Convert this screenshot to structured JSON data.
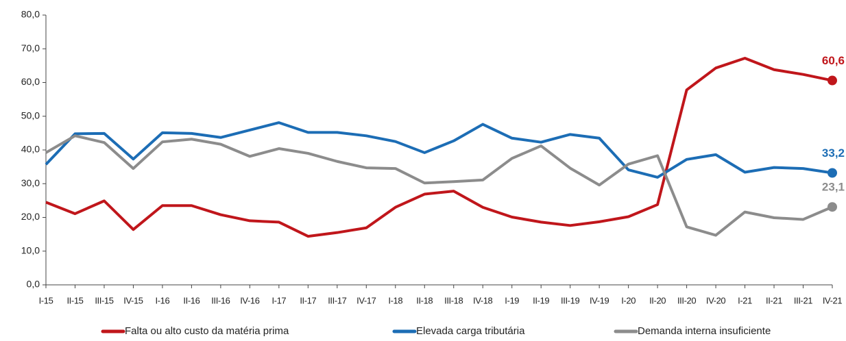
{
  "chart_data": {
    "type": "line",
    "categories": [
      "I-15",
      "II-15",
      "III-15",
      "IV-15",
      "I-16",
      "II-16",
      "III-16",
      "IV-16",
      "I-17",
      "II-17",
      "III-17",
      "IV-17",
      "I-18",
      "II-18",
      "III-18",
      "IV-18",
      "I-19",
      "II-19",
      "III-19",
      "IV-19",
      "I-20",
      "II-20",
      "III-20",
      "IV-20",
      "I-21",
      "II-21",
      "III-21",
      "IV-21"
    ],
    "series": [
      {
        "name": "Falta ou alto custo da matéria prima",
        "color": "#c0161b",
        "values": [
          24.5,
          21.1,
          24.9,
          16.4,
          23.5,
          23.5,
          20.8,
          19.0,
          18.6,
          14.4,
          15.5,
          16.9,
          23.0,
          26.9,
          27.8,
          23.0,
          20.1,
          18.6,
          17.6,
          18.7,
          20.2,
          23.8,
          57.8,
          64.3,
          67.2,
          63.8,
          62.4,
          60.6
        ],
        "value_labels": [
          null,
          null,
          null,
          null,
          null,
          null,
          null,
          null,
          null,
          null,
          null,
          null,
          null,
          null,
          null,
          null,
          null,
          null,
          null,
          null,
          null,
          null,
          null,
          null,
          null,
          null,
          null,
          "60,6"
        ]
      },
      {
        "name": "Elevada carga tributária",
        "color": "#1c6db5",
        "values": [
          35.7,
          44.8,
          44.9,
          37.3,
          45.1,
          44.9,
          43.7,
          45.9,
          48.1,
          45.2,
          45.2,
          44.2,
          42.5,
          39.2,
          42.7,
          47.6,
          43.5,
          42.3,
          44.6,
          43.5,
          34.1,
          31.9,
          37.2,
          38.6,
          33.4,
          34.8,
          34.5,
          33.2
        ],
        "value_labels": [
          null,
          null,
          null,
          null,
          null,
          null,
          null,
          null,
          null,
          null,
          null,
          null,
          null,
          null,
          null,
          null,
          null,
          null,
          null,
          null,
          null,
          null,
          null,
          null,
          null,
          null,
          null,
          "33,2"
        ]
      },
      {
        "name": "Demanda interna insuficiente",
        "color": "#8c8c8c",
        "values": [
          39.2,
          44.2,
          42.2,
          34.5,
          42.4,
          43.2,
          41.7,
          38.1,
          40.4,
          39.0,
          36.6,
          34.7,
          34.5,
          30.2,
          30.6,
          31.1,
          37.5,
          41.2,
          34.6,
          29.6,
          35.8,
          38.3,
          17.2,
          14.7,
          21.6,
          19.9,
          19.4,
          23.1
        ],
        "value_labels": [
          null,
          null,
          null,
          null,
          null,
          null,
          null,
          null,
          null,
          null,
          null,
          null,
          null,
          null,
          null,
          null,
          null,
          null,
          null,
          null,
          null,
          null,
          null,
          null,
          null,
          null,
          null,
          "23,1"
        ]
      }
    ],
    "ylim": [
      0,
      80
    ],
    "yticks": [
      {
        "value": 0,
        "label": "0,0"
      },
      {
        "value": 10,
        "label": "10,0"
      },
      {
        "value": 20,
        "label": "20,0"
      },
      {
        "value": 30,
        "label": "30,0"
      },
      {
        "value": 40,
        "label": "40,0"
      },
      {
        "value": 50,
        "label": "50,0"
      },
      {
        "value": 60,
        "label": "60,0"
      },
      {
        "value": 70,
        "label": "70,0"
      },
      {
        "value": 80,
        "label": "80,0"
      }
    ],
    "legend": "bottom"
  }
}
